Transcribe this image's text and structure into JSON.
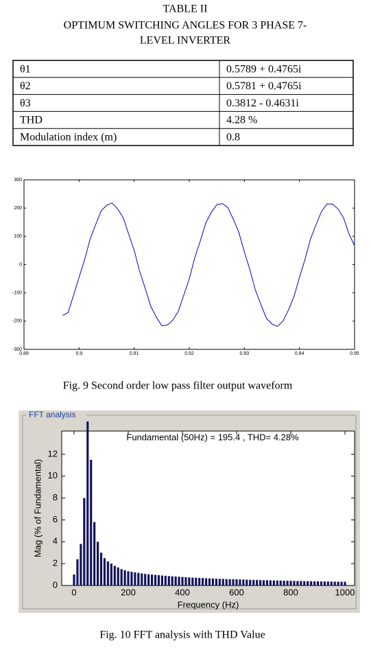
{
  "header": {
    "lines": [
      "TABLE II",
      "OPTIMUM SWITCHING ANGLES FOR 3 PHASE 7-",
      "LEVEL INVERTER"
    ]
  },
  "table": {
    "rows": [
      [
        "θ1",
        "0.5789 + 0.4765i"
      ],
      [
        "θ2",
        "0.5781 + 0.4765i"
      ],
      [
        "θ3",
        "0.3812 - 0.4631i"
      ],
      [
        "THD",
        "4.28 %"
      ],
      [
        "Modulation index (m)",
        "0.8"
      ]
    ]
  },
  "chart_data": [
    {
      "type": "line",
      "caption": "Fig. 9 Second order low pass filter output waveform",
      "color": "#0000cc",
      "x": [
        0.897,
        0.898,
        0.899,
        0.9,
        0.901,
        0.902,
        0.903,
        0.904,
        0.905,
        0.906,
        0.907,
        0.908,
        0.909,
        0.91,
        0.911,
        0.912,
        0.913,
        0.914,
        0.915,
        0.916,
        0.917,
        0.918,
        0.919,
        0.92,
        0.921,
        0.922,
        0.923,
        0.924,
        0.925,
        0.926,
        0.927,
        0.928,
        0.929,
        0.93,
        0.931,
        0.932,
        0.933,
        0.934,
        0.935,
        0.936,
        0.937,
        0.938,
        0.939,
        0.94,
        0.941,
        0.942,
        0.943,
        0.944,
        0.945,
        0.946,
        0.947,
        0.948,
        0.949,
        0.95
      ],
      "values": [
        -180,
        -170,
        -108,
        -45,
        18,
        90,
        141,
        190,
        210,
        218,
        197,
        166,
        108,
        50,
        -24,
        -84,
        -147,
        -185,
        -216,
        -214,
        -197,
        -166,
        -108,
        -50,
        24,
        84,
        147,
        185,
        212,
        216,
        202,
        160,
        114,
        45,
        -18,
        -90,
        -141,
        -190,
        -210,
        -219,
        -200,
        -161,
        -114,
        -45,
        18,
        90,
        141,
        188,
        215,
        214,
        197,
        166,
        108,
        67
      ],
      "xlim": [
        0.89,
        0.95
      ],
      "ylim": [
        -300,
        300
      ],
      "xticks": [
        0.89,
        0.9,
        0.91,
        0.92,
        0.93,
        0.94,
        0.95
      ],
      "yticks": [
        -300,
        -200,
        -100,
        0,
        100,
        200,
        300
      ]
    },
    {
      "type": "bar",
      "panel": "FFT analysis",
      "title": "Fundamental (50Hz) = 195.4 , THD= 4.28%",
      "ylabel": "Mag (% of Fundamental)",
      "xlabel": "Frequency (Hz)",
      "caption": "Fig. 10 FFT analysis with THD Value",
      "color": "#14145a",
      "x": [
        0,
        12.5,
        25,
        37.5,
        50,
        62.5,
        75,
        87.5,
        100,
        112.5,
        125,
        137.5,
        150,
        162.5,
        175,
        187.5,
        200,
        212.5,
        225,
        237.5,
        250,
        262.5,
        275,
        287.5,
        300,
        312.5,
        325,
        337.5,
        350,
        362.5,
        375,
        387.5,
        400,
        412.5,
        425,
        437.5,
        450,
        462.5,
        475,
        487.5,
        500,
        512.5,
        525,
        537.5,
        550,
        562.5,
        575,
        587.5,
        600,
        612.5,
        625,
        637.5,
        650,
        662.5,
        675,
        687.5,
        700,
        712.5,
        725,
        737.5,
        750,
        762.5,
        775,
        787.5,
        800,
        812.5,
        825,
        837.5,
        850,
        862.5,
        875,
        887.5,
        900,
        912.5,
        925,
        937.5,
        950,
        962.5,
        975,
        987.5,
        1000
      ],
      "values": [
        1.0,
        2.4,
        3.8,
        8.0,
        15,
        11.5,
        5.8,
        4.0,
        3.0,
        2.5,
        2.2,
        2.0,
        1.8,
        1.65,
        1.5,
        1.4,
        1.3,
        1.25,
        1.2,
        1.15,
        1.1,
        1.06,
        1.03,
        1.0,
        0.97,
        0.94,
        0.91,
        0.89,
        0.86,
        0.84,
        0.82,
        0.8,
        0.78,
        0.76,
        0.74,
        0.72,
        0.71,
        0.69,
        0.68,
        0.66,
        0.65,
        0.64,
        0.62,
        0.61,
        0.6,
        0.59,
        0.58,
        0.57,
        0.56,
        0.55,
        0.54,
        0.53,
        0.52,
        0.51,
        0.5,
        0.49,
        0.48,
        0.48,
        0.47,
        0.46,
        0.45,
        0.45,
        0.44,
        0.43,
        0.43,
        0.42,
        0.41,
        0.41,
        0.4,
        0.4,
        0.39,
        0.38,
        0.38,
        0.37,
        0.37,
        0.36,
        0.36,
        0.35,
        0.35,
        0.34,
        0.34
      ],
      "xlim": [
        -45.6,
        1035.4
      ],
      "ylim": [
        0,
        14.13
      ],
      "xticks": [
        0,
        200,
        400,
        600,
        800,
        1000
      ],
      "yticks": [
        0,
        2,
        4,
        6,
        8,
        10,
        12
      ]
    }
  ]
}
